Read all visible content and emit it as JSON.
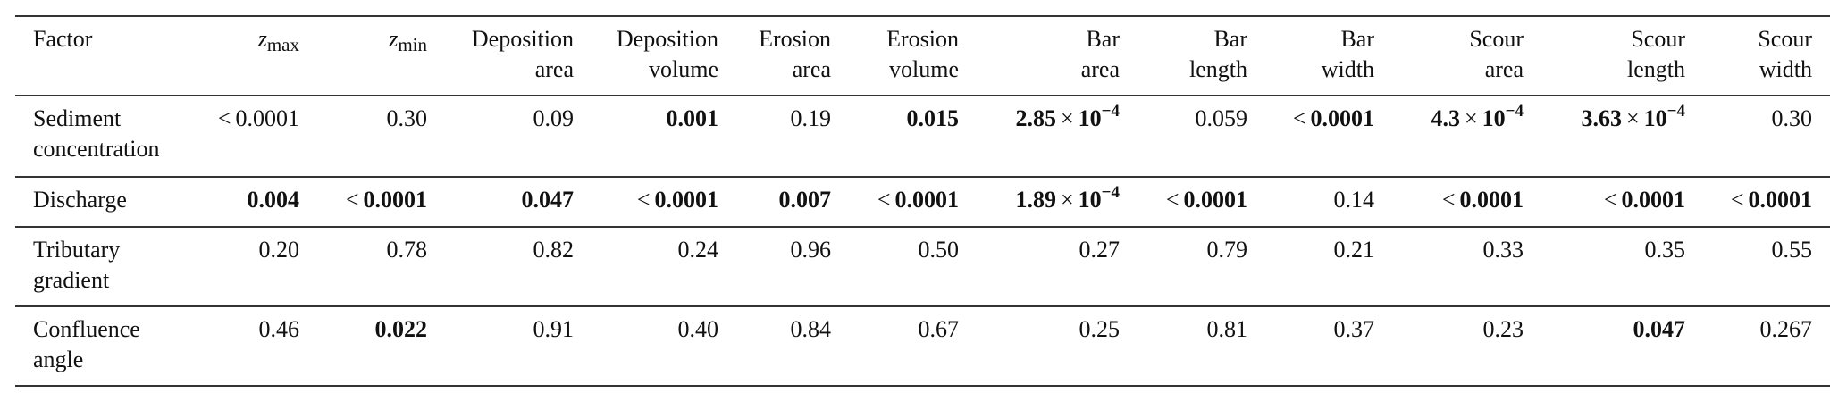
{
  "table": {
    "columns": [
      {
        "key": "factor",
        "lines": [
          "Factor"
        ]
      },
      {
        "key": "z_max",
        "symbol": "z",
        "subscript": "max"
      },
      {
        "key": "z_min",
        "symbol": "z",
        "subscript": "min"
      },
      {
        "key": "deposition_area",
        "lines": [
          "Deposition",
          "area"
        ]
      },
      {
        "key": "deposition_volume",
        "lines": [
          "Deposition",
          "volume"
        ]
      },
      {
        "key": "erosion_area",
        "lines": [
          "Erosion",
          "area"
        ]
      },
      {
        "key": "erosion_volume",
        "lines": [
          "Erosion",
          "volume"
        ]
      },
      {
        "key": "bar_area",
        "lines": [
          "Bar",
          "area"
        ]
      },
      {
        "key": "bar_length",
        "lines": [
          "Bar",
          "length"
        ]
      },
      {
        "key": "bar_width",
        "lines": [
          "Bar",
          "width"
        ]
      },
      {
        "key": "scour_area",
        "lines": [
          "Scour",
          "area"
        ]
      },
      {
        "key": "scour_length",
        "lines": [
          "Scour",
          "length"
        ]
      },
      {
        "key": "scour_width",
        "lines": [
          "Scour",
          "width"
        ]
      }
    ],
    "rows": [
      {
        "factor": [
          "Sediment",
          "concentration"
        ],
        "cells": [
          {
            "lt": "<",
            "value": "0.0001",
            "bold": false
          },
          {
            "value": "0.30",
            "bold": false
          },
          {
            "value": "0.09",
            "bold": false
          },
          {
            "value": "0.001",
            "bold": true
          },
          {
            "value": "0.19",
            "bold": false
          },
          {
            "value": "0.015",
            "bold": true
          },
          {
            "mantissa": "2.85",
            "times": "×",
            "base": "10",
            "exp": "−4",
            "bold": true
          },
          {
            "value": "0.059",
            "bold": false
          },
          {
            "lt": "<",
            "value": "0.0001",
            "bold": true
          },
          {
            "mantissa": "4.3",
            "times": "×",
            "base": "10",
            "exp": "−4",
            "bold": true
          },
          {
            "mantissa": "3.63",
            "times": "×",
            "base": "10",
            "exp": "−4",
            "bold": true
          },
          {
            "value": "0.30",
            "bold": false
          }
        ]
      },
      {
        "factor": [
          "Discharge"
        ],
        "cells": [
          {
            "value": "0.004",
            "bold": true
          },
          {
            "lt": "<",
            "value": "0.0001",
            "bold": true
          },
          {
            "value": "0.047",
            "bold": true
          },
          {
            "lt": "<",
            "value": "0.0001",
            "bold": true
          },
          {
            "value": "0.007",
            "bold": true
          },
          {
            "lt": "<",
            "value": "0.0001",
            "bold": true
          },
          {
            "mantissa": "1.89",
            "times": "×",
            "base": "10",
            "exp": "−4",
            "bold": true
          },
          {
            "lt": "<",
            "value": "0.0001",
            "bold": true
          },
          {
            "value": "0.14",
            "bold": false
          },
          {
            "lt": "<",
            "value": "0.0001",
            "bold": true
          },
          {
            "lt": "<",
            "value": "0.0001",
            "bold": true
          },
          {
            "lt": "<",
            "value": "0.0001",
            "bold": true
          }
        ]
      },
      {
        "factor": [
          "Tributary",
          "gradient"
        ],
        "cells": [
          {
            "value": "0.20",
            "bold": false
          },
          {
            "value": "0.78",
            "bold": false
          },
          {
            "value": "0.82",
            "bold": false
          },
          {
            "value": "0.24",
            "bold": false
          },
          {
            "value": "0.96",
            "bold": false
          },
          {
            "value": "0.50",
            "bold": false
          },
          {
            "value": "0.27",
            "bold": false
          },
          {
            "value": "0.79",
            "bold": false
          },
          {
            "value": "0.21",
            "bold": false
          },
          {
            "value": "0.33",
            "bold": false
          },
          {
            "value": "0.35",
            "bold": false
          },
          {
            "value": "0.55",
            "bold": false
          }
        ]
      },
      {
        "factor": [
          "Confluence",
          "angle"
        ],
        "cells": [
          {
            "value": "0.46",
            "bold": false
          },
          {
            "value": "0.022",
            "bold": true
          },
          {
            "value": "0.91",
            "bold": false
          },
          {
            "value": "0.40",
            "bold": false
          },
          {
            "value": "0.84",
            "bold": false
          },
          {
            "value": "0.67",
            "bold": false
          },
          {
            "value": "0.25",
            "bold": false
          },
          {
            "value": "0.81",
            "bold": false
          },
          {
            "value": "0.37",
            "bold": false
          },
          {
            "value": "0.23",
            "bold": false
          },
          {
            "value": "0.047",
            "bold": true
          },
          {
            "value": "0.267",
            "bold": false
          }
        ]
      }
    ]
  }
}
